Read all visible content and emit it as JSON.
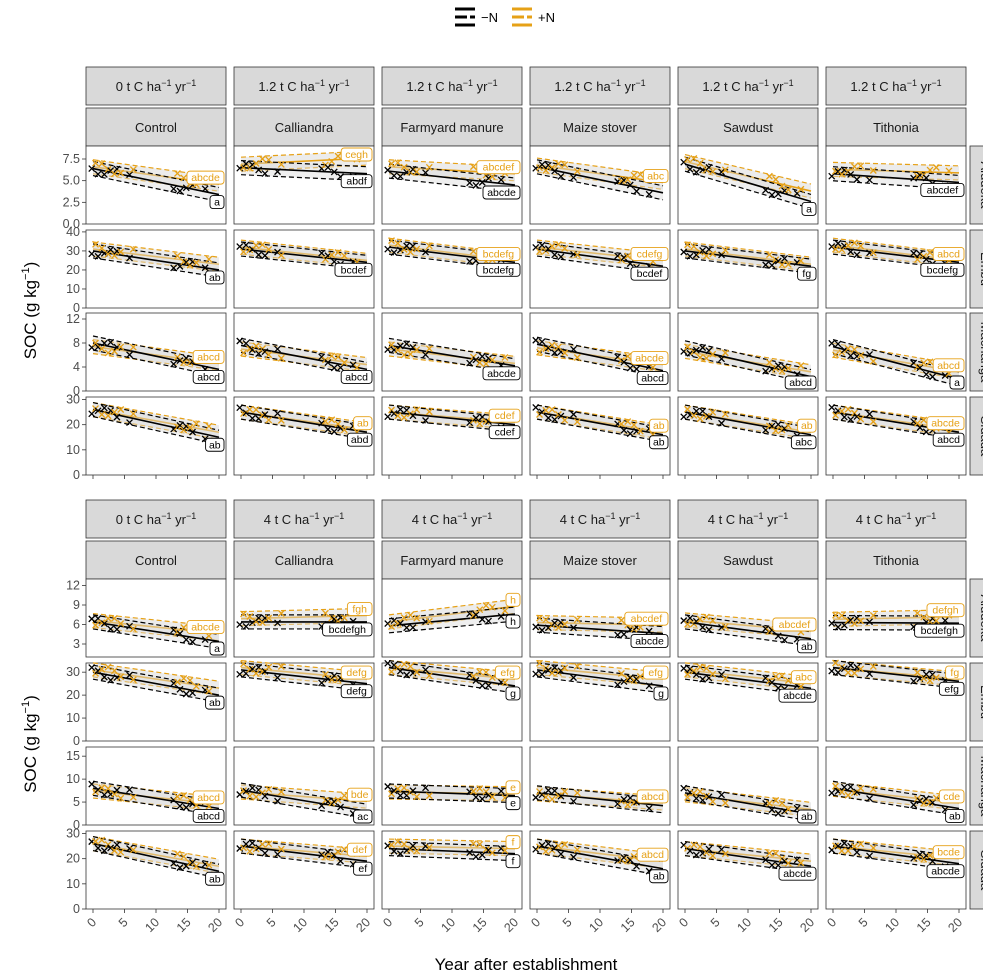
{
  "colors": {
    "minusN": "#000000",
    "plusN": "#e6a117",
    "band": "#dcdcdc",
    "strip": "#d9d9d9"
  },
  "chart_data": {
    "type": "scatter",
    "xlabel": "Year after establishment",
    "ylabel_main": "SOC (g kg",
    "ylabel_sup": "−1",
    "ylabel_close": ")",
    "x_ticks": [
      "0",
      "5",
      "10",
      "15",
      "20"
    ],
    "x_range": [
      0,
      20
    ],
    "legend": [
      {
        "name": "−N",
        "color": "#000000"
      },
      {
        "name": "+N",
        "color": "#e6a117"
      }
    ],
    "legend_position": "top",
    "grid": false,
    "treatments": [
      "Control",
      "Calliandra",
      "Farmyard manure",
      "Maize stover",
      "Sawdust",
      "Tithonia"
    ],
    "sites": [
      "Aludeka",
      "Embu",
      "Machanga",
      "Sidada"
    ],
    "blocks": [
      {
        "rate_labels": [
          {
            "main": "0 t C ha",
            "sup1": "−1",
            "mid": " yr",
            "sup2": "−1"
          },
          {
            "main": "1.2 t C ha",
            "sup1": "−1",
            "mid": " yr",
            "sup2": "−1"
          },
          {
            "main": "1.2 t C ha",
            "sup1": "−1",
            "mid": " yr",
            "sup2": "−1"
          },
          {
            "main": "1.2 t C ha",
            "sup1": "−1",
            "mid": " yr",
            "sup2": "−1"
          },
          {
            "main": "1.2 t C ha",
            "sup1": "−1",
            "mid": " yr",
            "sup2": "−1"
          },
          {
            "main": "1.2 t C ha",
            "sup1": "−1",
            "mid": " yr",
            "sup2": "−1"
          }
        ],
        "rows": [
          {
            "y_ticks": [
              "0.0",
              "2.5",
              "5.0",
              "7.5"
            ],
            "y_range": [
              0,
              9
            ],
            "panels": [
              {
                "minus": [
                  6.4,
                  3.4
                ],
                "plus": [
                  6.6,
                  4.6
                ],
                "tag_plus": "abcde",
                "tag_minus": "a"
              },
              {
                "minus": [
                  6.5,
                  5.8
                ],
                "plus": [
                  6.9,
                  7.6
                ],
                "tag_plus": "cegh",
                "tag_minus": "abdf"
              },
              {
                "minus": [
                  6.1,
                  4.5
                ],
                "plus": [
                  6.6,
                  5.8
                ],
                "tag_plus": "abcdef",
                "tag_minus": "abcde"
              },
              {
                "minus": [
                  6.6,
                  3.6
                ],
                "plus": [
                  6.8,
                  4.8
                ],
                "tag_plus": "abc",
                "tag_minus": ""
              },
              {
                "minus": [
                  6.9,
                  2.6
                ],
                "plus": [
                  7.2,
                  3.8
                ],
                "tag_plus": "",
                "tag_minus": "a"
              },
              {
                "minus": [
                  5.8,
                  4.8
                ],
                "plus": [
                  6.3,
                  5.9
                ],
                "tag_plus": "",
                "tag_minus": "abcdef"
              }
            ]
          },
          {
            "y_ticks": [
              "0",
              "10",
              "20",
              "30",
              "40"
            ],
            "y_range": [
              0,
              41
            ],
            "panels": [
              {
                "minus": [
                  30,
                  20
                ],
                "plus": [
                  31,
                  23
                ],
                "tag_plus": "",
                "tag_minus": "ab"
              },
              {
                "minus": [
                  31,
                  24
                ],
                "plus": [
                  32,
                  25
                ],
                "tag_plus": "",
                "tag_minus": "bcdef"
              },
              {
                "minus": [
                  32,
                  24
                ],
                "plus": [
                  33,
                  25
                ],
                "tag_plus": "bcdefg",
                "tag_minus": "bcdefg"
              },
              {
                "minus": [
                  31,
                  22
                ],
                "plus": [
                  32,
                  25
                ],
                "tag_plus": "cdefg",
                "tag_minus": "bcdef"
              },
              {
                "minus": [
                  30,
                  22
                ],
                "plus": [
                  31,
                  23
                ],
                "tag_plus": "",
                "tag_minus": "fg"
              },
              {
                "minus": [
                  32,
                  24
                ],
                "plus": [
                  33,
                  25
                ],
                "tag_plus": "abcd",
                "tag_minus": "bcdefg"
              }
            ]
          },
          {
            "y_ticks": [
              "0",
              "4",
              "8",
              "12"
            ],
            "y_range": [
              0,
              13
            ],
            "panels": [
              {
                "minus": [
                  8.0,
                  3.6
                ],
                "plus": [
                  7.4,
                  4.6
                ],
                "tag_plus": "abcd",
                "tag_minus": "abcd"
              },
              {
                "minus": [
                  7.6,
                  3.6
                ],
                "plus": [
                  7.0,
                  4.4
                ],
                "tag_plus": "",
                "tag_minus": "abcd"
              },
              {
                "minus": [
                  7.6,
                  4.2
                ],
                "plus": [
                  7.0,
                  4.6
                ],
                "tag_plus": "",
                "tag_minus": "abcde"
              },
              {
                "minus": [
                  7.8,
                  3.4
                ],
                "plus": [
                  7.2,
                  4.4
                ],
                "tag_plus": "abcde",
                "tag_minus": "abcd"
              },
              {
                "minus": [
                  7.2,
                  2.4
                ],
                "plus": [
                  6.6,
                  3.2
                ],
                "tag_plus": "",
                "tag_minus": "abcd"
              },
              {
                "minus": [
                  7.4,
                  2.0
                ],
                "plus": [
                  6.8,
                  3.2
                ],
                "tag_plus": "abcd",
                "tag_minus": "a"
              }
            ]
          },
          {
            "y_ticks": [
              "0",
              "10",
              "20",
              "30"
            ],
            "y_range": [
              0,
              31
            ],
            "panels": [
              {
                "minus": [
                  26,
                  15
                ],
                "plus": [
                  26,
                  17
                ],
                "tag_plus": "",
                "tag_minus": "ab"
              },
              {
                "minus": [
                  25,
                  17
                ],
                "plus": [
                  25,
                  18
                ],
                "tag_plus": "ab",
                "tag_minus": "abd"
              },
              {
                "minus": [
                  25,
                  20
                ],
                "plus": [
                  25,
                  21
                ],
                "tag_plus": "cdef",
                "tag_minus": "cdef"
              },
              {
                "minus": [
                  25,
                  16
                ],
                "plus": [
                  25,
                  17
                ],
                "tag_plus": "ab",
                "tag_minus": "ab"
              },
              {
                "minus": [
                  25,
                  16
                ],
                "plus": [
                  25,
                  17
                ],
                "tag_plus": "ab",
                "tag_minus": "abc"
              },
              {
                "minus": [
                  25,
                  17
                ],
                "plus": [
                  25,
                  18
                ],
                "tag_plus": "abcde",
                "tag_minus": "abcd"
              }
            ]
          }
        ]
      },
      {
        "rate_labels": [
          {
            "main": "0 t C ha",
            "sup1": "−1",
            "mid": " yr",
            "sup2": "−1"
          },
          {
            "main": "4 t C ha",
            "sup1": "−1",
            "mid": " yr",
            "sup2": "−1"
          },
          {
            "main": "4 t C ha",
            "sup1": "−1",
            "mid": " yr",
            "sup2": "−1"
          },
          {
            "main": "4 t C ha",
            "sup1": "−1",
            "mid": " yr",
            "sup2": "−1"
          },
          {
            "main": "4 t C ha",
            "sup1": "−1",
            "mid": " yr",
            "sup2": "−1"
          },
          {
            "main": "4 t C ha",
            "sup1": "−1",
            "mid": " yr",
            "sup2": "−1"
          }
        ],
        "rows": [
          {
            "y_ticks": [
              "3",
              "6",
              "9",
              "12"
            ],
            "y_range": [
              1,
              13
            ],
            "panels": [
              {
                "minus": [
                  6.4,
                  3.4
                ],
                "plus": [
                  6.6,
                  4.6
                ],
                "tag_plus": "abcde",
                "tag_minus": "a"
              },
              {
                "minus": [
                  6.4,
                  6.4
                ],
                "plus": [
                  6.9,
                  7.4
                ],
                "tag_plus": "fgh",
                "tag_minus": "bcdefgh"
              },
              {
                "minus": [
                  5.8,
                  7.6
                ],
                "plus": [
                  6.4,
                  8.8
                ],
                "tag_plus": "h",
                "tag_minus": "h"
              },
              {
                "minus": [
                  5.9,
                  4.6
                ],
                "plus": [
                  6.3,
                  5.9
                ],
                "tag_plus": "abcdef",
                "tag_minus": "abcde"
              },
              {
                "minus": [
                  6.4,
                  3.8
                ],
                "plus": [
                  6.7,
                  5.0
                ],
                "tag_plus": "abcdef",
                "tag_minus": "ab"
              },
              {
                "minus": [
                  6.3,
                  6.2
                ],
                "plus": [
                  6.8,
                  7.2
                ],
                "tag_plus": "defgh",
                "tag_minus": "bcdefgh"
              }
            ]
          },
          {
            "y_ticks": [
              "0",
              "10",
              "20",
              "30"
            ],
            "y_range": [
              0,
              34
            ],
            "panels": [
              {
                "minus": [
                  30,
                  20
                ],
                "plus": [
                  31,
                  23
                ],
                "tag_plus": "",
                "tag_minus": "ab"
              },
              {
                "minus": [
                  31,
                  25
                ],
                "plus": [
                  32,
                  27
                ],
                "tag_plus": "defg",
                "tag_minus": "defg"
              },
              {
                "minus": [
                  32,
                  24
                ],
                "plus": [
                  32,
                  27
                ],
                "tag_plus": "efg",
                "tag_minus": "g"
              },
              {
                "minus": [
                  31,
                  24
                ],
                "plus": [
                  32,
                  27
                ],
                "tag_plus": "efg",
                "tag_minus": "g"
              },
              {
                "minus": [
                  30,
                  23
                ],
                "plus": [
                  31,
                  25
                ],
                "tag_plus": "abc",
                "tag_minus": "abcde"
              },
              {
                "minus": [
                  32,
                  26
                ],
                "plus": [
                  32,
                  27
                ],
                "tag_plus": "fg",
                "tag_minus": "efg"
              }
            ]
          },
          {
            "y_ticks": [
              "0",
              "5",
              "10",
              "15"
            ],
            "y_range": [
              0,
              17
            ],
            "panels": [
              {
                "minus": [
                  8.0,
                  3.6
                ],
                "plus": [
                  7.4,
                  4.6
                ],
                "tag_plus": "abcd",
                "tag_minus": "abcd"
              },
              {
                "minus": [
                  7.6,
                  3.0
                ],
                "plus": [
                  7.2,
                  5.2
                ],
                "tag_plus": "bde",
                "tag_minus": "ac"
              },
              {
                "minus": [
                  7.4,
                  6.4
                ],
                "plus": [
                  7.2,
                  6.8
                ],
                "tag_plus": "e",
                "tag_minus": "e"
              },
              {
                "minus": [
                  7.0,
                  4.2
                ],
                "plus": [
                  6.8,
                  4.8
                ],
                "tag_plus": "abcd",
                "tag_minus": ""
              },
              {
                "minus": [
                  7.0,
                  2.4
                ],
                "plus": [
                  6.6,
                  3.4
                ],
                "tag_plus": "",
                "tag_minus": "ab"
              },
              {
                "minus": [
                  8.0,
                  3.6
                ],
                "plus": [
                  7.8,
                  4.8
                ],
                "tag_plus": "cde",
                "tag_minus": "ab"
              }
            ]
          },
          {
            "y_ticks": [
              "0",
              "10",
              "20",
              "30"
            ],
            "y_range": [
              0,
              31
            ],
            "panels": [
              {
                "minus": [
                  26,
                  15
                ],
                "plus": [
                  26,
                  17
                ],
                "tag_plus": "",
                "tag_minus": "ab"
              },
              {
                "minus": [
                  25,
                  19
                ],
                "plus": [
                  25,
                  21
                ],
                "tag_plus": "def",
                "tag_minus": "ef"
              },
              {
                "minus": [
                  24,
                  22
                ],
                "plus": [
                  25,
                  24
                ],
                "tag_plus": "f",
                "tag_minus": "f"
              },
              {
                "minus": [
                  25,
                  16
                ],
                "plus": [
                  25,
                  19
                ],
                "tag_plus": "abcd",
                "tag_minus": "ab"
              },
              {
                "minus": [
                  24,
                  17
                ],
                "plus": [
                  24,
                  19
                ],
                "tag_plus": "",
                "tag_minus": "abcde"
              },
              {
                "minus": [
                  25,
                  18
                ],
                "plus": [
                  25,
                  20
                ],
                "tag_plus": "bcde",
                "tag_minus": "abcde"
              }
            ]
          }
        ]
      }
    ]
  }
}
